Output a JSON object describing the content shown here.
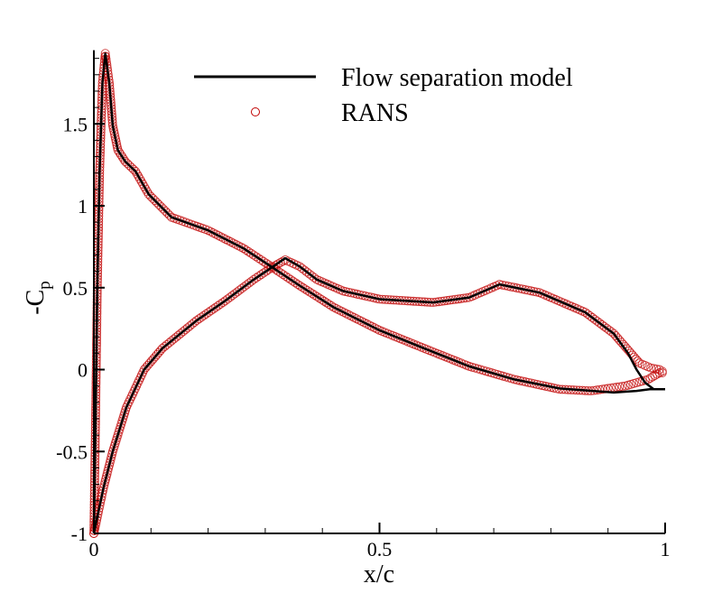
{
  "chart_data": {
    "type": "line",
    "xlabel": "x/c",
    "ylabel": "-C",
    "ylabel_sub": "p",
    "xlim": [
      0,
      1
    ],
    "ylim": [
      -1,
      1.95
    ],
    "xticks": [
      0,
      0.5,
      1
    ],
    "xtick_labels": [
      "0",
      "0.5",
      "1"
    ],
    "yticks": [
      -1,
      -0.5,
      0,
      0.5,
      1,
      1.5
    ],
    "ytick_labels": [
      "-1",
      "-0.5",
      "0",
      "0.5",
      "1",
      "1.5"
    ],
    "grid": false,
    "legend_position": "top-right",
    "series": [
      {
        "name": "Flow separation model",
        "style": "line",
        "color": "#000000",
        "segments": [
          [
            [
              0,
              -1
            ],
            [
              0.003,
              -0.3
            ],
            [
              0.006,
              0.5
            ],
            [
              0.01,
              1.2
            ],
            [
              0.015,
              1.75
            ],
            [
              0.02,
              1.93
            ],
            [
              0.027,
              1.75
            ],
            [
              0.033,
              1.49
            ],
            [
              0.042,
              1.34
            ],
            [
              0.055,
              1.27
            ],
            [
              0.073,
              1.21
            ],
            [
              0.096,
              1.07
            ],
            [
              0.136,
              0.93
            ],
            [
              0.2,
              0.85
            ],
            [
              0.262,
              0.74
            ],
            [
              0.31,
              0.63
            ],
            [
              0.357,
              0.52
            ],
            [
              0.42,
              0.38
            ],
            [
              0.5,
              0.24
            ],
            [
              0.578,
              0.13
            ],
            [
              0.657,
              0.02
            ],
            [
              0.736,
              -0.06
            ],
            [
              0.815,
              -0.115
            ],
            [
              0.91,
              -0.14
            ],
            [
              0.95,
              -0.13
            ],
            [
              0.973,
              -0.12
            ],
            [
              1.0,
              -0.12
            ]
          ],
          [
            [
              0,
              -1
            ],
            [
              0.006,
              -0.9
            ],
            [
              0.017,
              -0.72
            ],
            [
              0.033,
              -0.5
            ],
            [
              0.057,
              -0.23
            ],
            [
              0.088,
              0.0
            ],
            [
              0.12,
              0.13
            ],
            [
              0.18,
              0.3
            ],
            [
              0.23,
              0.42
            ],
            [
              0.28,
              0.55
            ],
            [
              0.31,
              0.62
            ],
            [
              0.335,
              0.68
            ],
            [
              0.36,
              0.63
            ],
            [
              0.39,
              0.55
            ],
            [
              0.436,
              0.48
            ],
            [
              0.5,
              0.43
            ],
            [
              0.594,
              0.41
            ],
            [
              0.657,
              0.44
            ],
            [
              0.71,
              0.52
            ],
            [
              0.78,
              0.47
            ],
            [
              0.86,
              0.35
            ],
            [
              0.91,
              0.22
            ],
            [
              0.935,
              0.1
            ],
            [
              0.95,
              0.0
            ],
            [
              0.965,
              -0.08
            ],
            [
              0.98,
              -0.12
            ],
            [
              1.0,
              -0.12
            ]
          ]
        ]
      },
      {
        "name": "RANS",
        "style": "markers",
        "marker": "circle",
        "color": "#c00000",
        "segments": [
          [
            [
              0,
              -1
            ],
            [
              0.003,
              -0.3
            ],
            [
              0.006,
              0.5
            ],
            [
              0.01,
              1.2
            ],
            [
              0.015,
              1.75
            ],
            [
              0.02,
              1.93
            ],
            [
              0.027,
              1.75
            ],
            [
              0.033,
              1.49
            ],
            [
              0.042,
              1.34
            ],
            [
              0.055,
              1.27
            ],
            [
              0.073,
              1.21
            ],
            [
              0.096,
              1.07
            ],
            [
              0.136,
              0.93
            ],
            [
              0.2,
              0.85
            ],
            [
              0.262,
              0.74
            ],
            [
              0.31,
              0.63
            ],
            [
              0.357,
              0.52
            ],
            [
              0.42,
              0.38
            ],
            [
              0.5,
              0.24
            ],
            [
              0.578,
              0.13
            ],
            [
              0.657,
              0.02
            ],
            [
              0.736,
              -0.06
            ],
            [
              0.815,
              -0.12
            ],
            [
              0.87,
              -0.13
            ],
            [
              0.93,
              -0.1
            ],
            [
              0.97,
              -0.06
            ],
            [
              0.99,
              -0.02
            ],
            [
              1.0,
              -0.02
            ]
          ],
          [
            [
              0,
              -1
            ],
            [
              0.006,
              -0.9
            ],
            [
              0.017,
              -0.72
            ],
            [
              0.033,
              -0.5
            ],
            [
              0.057,
              -0.23
            ],
            [
              0.088,
              0.0
            ],
            [
              0.12,
              0.13
            ],
            [
              0.18,
              0.3
            ],
            [
              0.23,
              0.42
            ],
            [
              0.28,
              0.55
            ],
            [
              0.31,
              0.62
            ],
            [
              0.335,
              0.67
            ],
            [
              0.36,
              0.63
            ],
            [
              0.39,
              0.55
            ],
            [
              0.436,
              0.48
            ],
            [
              0.5,
              0.43
            ],
            [
              0.594,
              0.41
            ],
            [
              0.657,
              0.44
            ],
            [
              0.71,
              0.52
            ],
            [
              0.78,
              0.47
            ],
            [
              0.86,
              0.35
            ],
            [
              0.91,
              0.22
            ],
            [
              0.94,
              0.1
            ],
            [
              0.955,
              0.04
            ],
            [
              0.975,
              0.01
            ],
            [
              0.99,
              0.0
            ],
            [
              1.0,
              -0.02
            ]
          ]
        ]
      }
    ]
  }
}
